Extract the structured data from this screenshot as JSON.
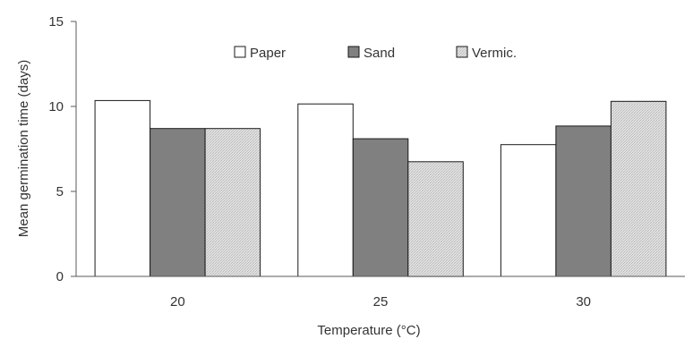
{
  "chart_data": {
    "type": "bar",
    "title": "",
    "xlabel": "Temperature (°C)",
    "ylabel": "Mean germination time (days)",
    "categories": [
      "20",
      "25",
      "30"
    ],
    "ylim": [
      0,
      15
    ],
    "yticks": [
      "0",
      "5",
      "10",
      "15"
    ],
    "grid": false,
    "legend_position": "top-center",
    "series": [
      {
        "name": "Paper",
        "values": [
          10.35,
          10.15,
          7.75
        ],
        "color": "#ffffff"
      },
      {
        "name": "Sand",
        "values": [
          8.7,
          8.1,
          8.85
        ],
        "color": "#808080"
      },
      {
        "name": "Vermic.",
        "values": [
          8.7,
          6.75,
          10.3
        ],
        "color": "#dcdcdc"
      }
    ]
  }
}
